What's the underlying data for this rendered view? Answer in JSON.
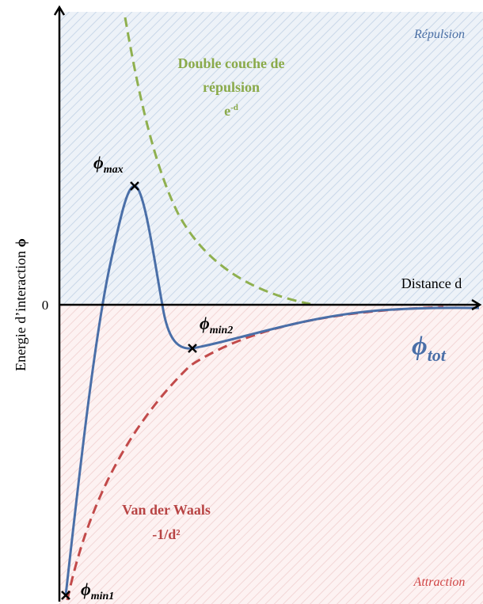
{
  "labels": {
    "repulsion": "Répulsion",
    "attraction": "Attraction",
    "double_layer": {
      "line1": "Double couche de",
      "line2": "répulsion",
      "base": "e",
      "sup": "-d"
    },
    "van_der_waals": {
      "line1": "Van der Waals",
      "line2": "-1/d²"
    },
    "x_axis": "Distance d",
    "zero": "0",
    "y_axis": {
      "text": "Energie d’interaction",
      "symbol": "ϕ"
    },
    "phi_max": {
      "symbol": "ϕ",
      "sub": "max"
    },
    "phi_min2": {
      "symbol": "ϕ",
      "sub": "min2"
    },
    "phi_min1": {
      "symbol": "ϕ",
      "sub": "min1"
    },
    "phi_tot": {
      "symbol": "ϕ",
      "sub": "tot"
    }
  }
}
